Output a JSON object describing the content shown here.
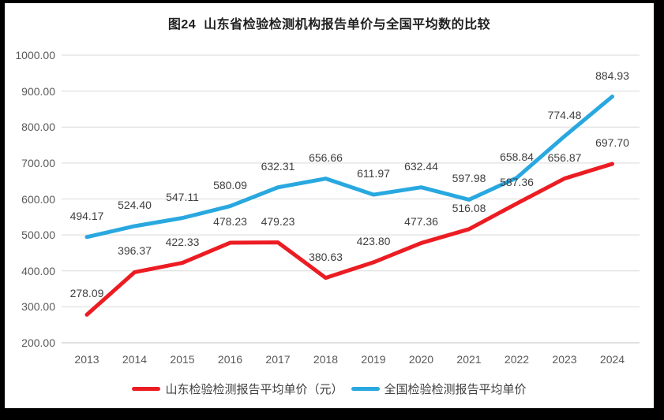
{
  "frame": {
    "border_color": "#000000",
    "panel_color": "#ffffff"
  },
  "chart_data": {
    "type": "line",
    "title": "图24  山东省检验检测机构报告单价与全国平均数的比较",
    "categories": [
      "2013",
      "2014",
      "2015",
      "2016",
      "2017",
      "2018",
      "2019",
      "2020",
      "2021",
      "2022",
      "2023",
      "2024"
    ],
    "series": [
      {
        "name": "山东检验检测报告平均单价（元）",
        "color": "#ec1c23",
        "values": [
          278.09,
          396.37,
          422.33,
          478.23,
          479.23,
          380.63,
          423.8,
          477.36,
          516.08,
          587.36,
          656.87,
          697.7
        ]
      },
      {
        "name": "全国检验检测报告平均单价",
        "color": "#29a8e0",
        "values": [
          494.17,
          524.4,
          547.11,
          580.09,
          632.31,
          656.66,
          611.97,
          632.44,
          597.98,
          658.84,
          774.48,
          884.93
        ]
      }
    ],
    "y_axis": {
      "min": 200,
      "max": 1000,
      "step": 100,
      "decimals": 2
    },
    "xlabel": "",
    "ylabel": "",
    "grid": true,
    "grid_color": "#d9d9d9",
    "axis_line_color": "#c3c3c3",
    "data_labels": true,
    "legend_position": "bottom"
  }
}
